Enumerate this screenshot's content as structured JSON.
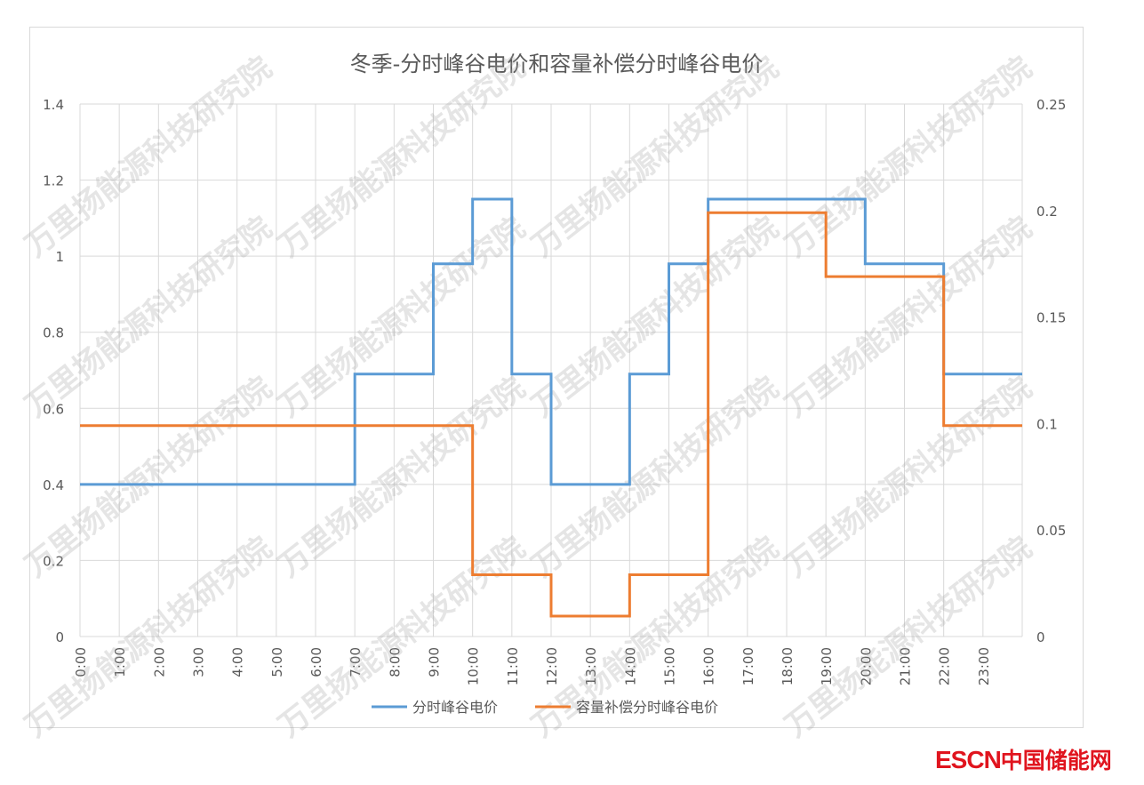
{
  "chart_data": {
    "type": "line",
    "step": true,
    "title": "冬季-分时峰谷电价和容量补偿分时峰谷电价",
    "x_tick_labels": [
      "0:00",
      "1:00",
      "2:00",
      "3:00",
      "4:00",
      "5:00",
      "6:00",
      "7:00",
      "8:00",
      "9:00",
      "10:00",
      "11:00",
      "12:00",
      "13:00",
      "14:00",
      "15:00",
      "16:00",
      "17:00",
      "18:00",
      "19:00",
      "20:00",
      "21:00",
      "22:00",
      "23:00"
    ],
    "x_hours": [
      0,
      1,
      2,
      3,
      4,
      5,
      6,
      7,
      8,
      9,
      10,
      11,
      12,
      13,
      14,
      15,
      16,
      17,
      18,
      19,
      20,
      21,
      22,
      23,
      24
    ],
    "xlim": [
      0,
      24
    ],
    "ylim_left": [
      0,
      1.4
    ],
    "yticks_left": [
      0,
      0.2,
      0.4,
      0.6,
      0.8,
      1,
      1.2,
      1.4
    ],
    "ylim_right": [
      0,
      0.25
    ],
    "yticks_right": [
      0,
      0.05,
      0.1,
      0.15,
      0.2,
      0.25
    ],
    "grid": true,
    "legend_position": "bottom",
    "series": [
      {
        "name": "分时峰谷电价",
        "axis": "left",
        "color": "#5b9bd5",
        "values": [
          0.4,
          0.4,
          0.4,
          0.4,
          0.4,
          0.4,
          0.4,
          0.69,
          0.69,
          0.98,
          1.15,
          0.69,
          0.4,
          0.4,
          0.69,
          0.98,
          1.15,
          1.15,
          1.15,
          1.15,
          0.98,
          0.98,
          0.69,
          0.69
        ]
      },
      {
        "name": "容量补偿分时峰谷电价",
        "axis": "right",
        "color": "#ed7d31",
        "values": [
          0.099,
          0.099,
          0.099,
          0.099,
          0.099,
          0.099,
          0.099,
          0.099,
          0.099,
          0.099,
          0.029,
          0.029,
          0.0096,
          0.0096,
          0.029,
          0.029,
          0.199,
          0.199,
          0.199,
          0.169,
          0.169,
          0.169,
          0.099,
          0.099
        ]
      }
    ]
  },
  "watermark": "万里扬能源科技研究院",
  "logo": {
    "latin": "ESCN",
    "cn": "中国储能网",
    "color": "#e0141e"
  }
}
